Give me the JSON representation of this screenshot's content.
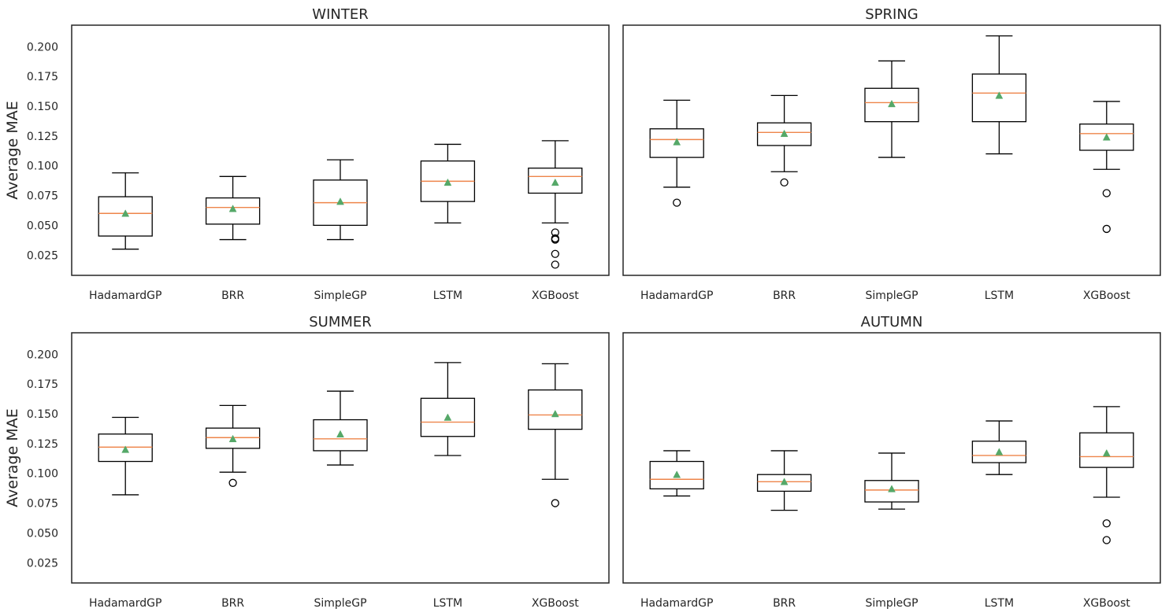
{
  "chart_data": [
    {
      "type": "box",
      "title": "WINTER",
      "ylabel": "Average MAE",
      "categories": [
        "HadamardGP",
        "BRR",
        "SimpleGP",
        "LSTM",
        "XGBoost"
      ],
      "ylim": [
        0.008,
        0.218
      ],
      "yticks": [
        "0.025",
        "0.050",
        "0.075",
        "0.100",
        "0.125",
        "0.150",
        "0.175",
        "0.200"
      ],
      "boxes": [
        {
          "whislo": 0.03,
          "q1": 0.041,
          "med": 0.06,
          "q3": 0.074,
          "whishi": 0.094,
          "mean": 0.06,
          "fliers": []
        },
        {
          "whislo": 0.038,
          "q1": 0.051,
          "med": 0.065,
          "q3": 0.073,
          "whishi": 0.091,
          "mean": 0.064,
          "fliers": []
        },
        {
          "whislo": 0.038,
          "q1": 0.05,
          "med": 0.069,
          "q3": 0.088,
          "whishi": 0.105,
          "mean": 0.07,
          "fliers": []
        },
        {
          "whislo": 0.052,
          "q1": 0.07,
          "med": 0.087,
          "q3": 0.104,
          "whishi": 0.118,
          "mean": 0.086,
          "fliers": []
        },
        {
          "whislo": 0.052,
          "q1": 0.077,
          "med": 0.091,
          "q3": 0.098,
          "whishi": 0.121,
          "mean": 0.086,
          "fliers": [
            0.017,
            0.026,
            0.038,
            0.039,
            0.044
          ]
        }
      ]
    },
    {
      "type": "box",
      "title": "SPRING",
      "ylabel": "",
      "categories": [
        "HadamardGP",
        "BRR",
        "SimpleGP",
        "LSTM",
        "XGBoost"
      ],
      "ylim": [
        0.008,
        0.218
      ],
      "yticks": [],
      "boxes": [
        {
          "whislo": 0.082,
          "q1": 0.107,
          "med": 0.122,
          "q3": 0.131,
          "whishi": 0.155,
          "mean": 0.12,
          "fliers": [
            0.069
          ]
        },
        {
          "whislo": 0.095,
          "q1": 0.117,
          "med": 0.128,
          "q3": 0.136,
          "whishi": 0.159,
          "mean": 0.127,
          "fliers": [
            0.086
          ]
        },
        {
          "whislo": 0.107,
          "q1": 0.137,
          "med": 0.153,
          "q3": 0.165,
          "whishi": 0.188,
          "mean": 0.152,
          "fliers": []
        },
        {
          "whislo": 0.11,
          "q1": 0.137,
          "med": 0.161,
          "q3": 0.177,
          "whishi": 0.209,
          "mean": 0.159,
          "fliers": []
        },
        {
          "whislo": 0.097,
          "q1": 0.113,
          "med": 0.127,
          "q3": 0.135,
          "whishi": 0.154,
          "mean": 0.124,
          "fliers": [
            0.047,
            0.077
          ]
        }
      ]
    },
    {
      "type": "box",
      "title": "SUMMER",
      "ylabel": "Average MAE",
      "categories": [
        "HadamardGP",
        "BRR",
        "SimpleGP",
        "LSTM",
        "XGBoost"
      ],
      "ylim": [
        0.008,
        0.218
      ],
      "yticks": [
        "0.025",
        "0.050",
        "0.075",
        "0.100",
        "0.125",
        "0.150",
        "0.175",
        "0.200"
      ],
      "boxes": [
        {
          "whislo": 0.082,
          "q1": 0.11,
          "med": 0.122,
          "q3": 0.133,
          "whishi": 0.147,
          "mean": 0.12,
          "fliers": []
        },
        {
          "whislo": 0.101,
          "q1": 0.121,
          "med": 0.13,
          "q3": 0.138,
          "whishi": 0.157,
          "mean": 0.129,
          "fliers": [
            0.092
          ]
        },
        {
          "whislo": 0.107,
          "q1": 0.119,
          "med": 0.129,
          "q3": 0.145,
          "whishi": 0.169,
          "mean": 0.133,
          "fliers": []
        },
        {
          "whislo": 0.115,
          "q1": 0.131,
          "med": 0.143,
          "q3": 0.163,
          "whishi": 0.193,
          "mean": 0.147,
          "fliers": []
        },
        {
          "whislo": 0.095,
          "q1": 0.137,
          "med": 0.149,
          "q3": 0.17,
          "whishi": 0.192,
          "mean": 0.15,
          "fliers": [
            0.075
          ]
        }
      ]
    },
    {
      "type": "box",
      "title": "AUTUMN",
      "ylabel": "",
      "categories": [
        "HadamardGP",
        "BRR",
        "SimpleGP",
        "LSTM",
        "XGBoost"
      ],
      "ylim": [
        0.008,
        0.218
      ],
      "yticks": [],
      "boxes": [
        {
          "whislo": 0.081,
          "q1": 0.087,
          "med": 0.095,
          "q3": 0.11,
          "whishi": 0.119,
          "mean": 0.099,
          "fliers": []
        },
        {
          "whislo": 0.069,
          "q1": 0.085,
          "med": 0.093,
          "q3": 0.099,
          "whishi": 0.119,
          "mean": 0.093,
          "fliers": []
        },
        {
          "whislo": 0.07,
          "q1": 0.076,
          "med": 0.086,
          "q3": 0.094,
          "whishi": 0.117,
          "mean": 0.087,
          "fliers": []
        },
        {
          "whislo": 0.099,
          "q1": 0.109,
          "med": 0.115,
          "q3": 0.127,
          "whishi": 0.144,
          "mean": 0.118,
          "fliers": []
        },
        {
          "whislo": 0.08,
          "q1": 0.105,
          "med": 0.114,
          "q3": 0.134,
          "whishi": 0.156,
          "mean": 0.117,
          "fliers": [
            0.044,
            0.058
          ]
        }
      ]
    }
  ],
  "colors": {
    "box": "#000000",
    "median": "#ee854a",
    "mean_marker": "#55a868",
    "frame": "#262626",
    "text": "#262626"
  }
}
